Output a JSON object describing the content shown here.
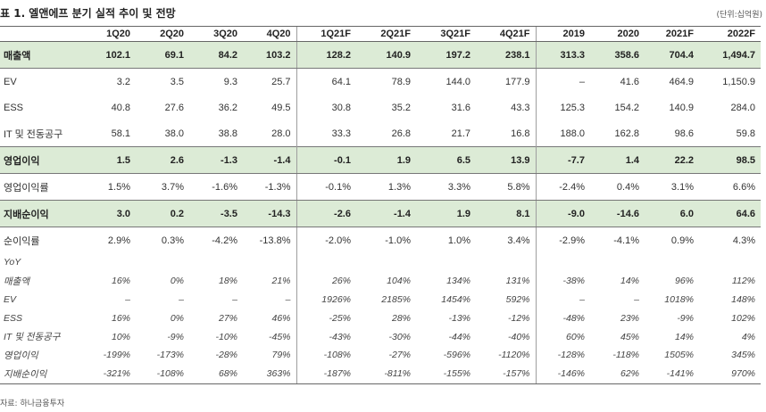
{
  "title": "표 1. 엘앤에프 분기 실적 추이 및 전망",
  "unit": "(단위:십억원)",
  "source": "자료: 하나금융투자",
  "columns": [
    "1Q20",
    "2Q20",
    "3Q20",
    "4Q20",
    "1Q21F",
    "2Q21F",
    "3Q21F",
    "4Q21F",
    "2019",
    "2020",
    "2021F",
    "2022F"
  ],
  "rows": [
    {
      "label": "매출액",
      "values": [
        "102.1",
        "69.1",
        "84.2",
        "103.2",
        "128.2",
        "140.9",
        "197.2",
        "238.1",
        "313.3",
        "358.6",
        "704.4",
        "1,494.7"
      ]
    },
    {
      "label": "EV",
      "values": [
        "3.2",
        "3.5",
        "9.3",
        "25.7",
        "64.1",
        "78.9",
        "144.0",
        "177.9",
        "–",
        "41.6",
        "464.9",
        "1,150.9"
      ]
    },
    {
      "label": "ESS",
      "values": [
        "40.8",
        "27.6",
        "36.2",
        "49.5",
        "30.8",
        "35.2",
        "31.6",
        "43.3",
        "125.3",
        "154.2",
        "140.9",
        "284.0"
      ]
    },
    {
      "label": "IT 및 전동공구",
      "values": [
        "58.1",
        "38.0",
        "38.8",
        "28.0",
        "33.3",
        "26.8",
        "21.7",
        "16.8",
        "188.0",
        "162.8",
        "98.6",
        "59.8"
      ]
    },
    {
      "label": "영업이익",
      "values": [
        "1.5",
        "2.6",
        "-1.3",
        "-1.4",
        "-0.1",
        "1.9",
        "6.5",
        "13.9",
        "-7.7",
        "1.4",
        "22.2",
        "98.5"
      ]
    },
    {
      "label": "영업이익률",
      "values": [
        "1.5%",
        "3.7%",
        "-1.6%",
        "-1.3%",
        "-0.1%",
        "1.3%",
        "3.3%",
        "5.8%",
        "-2.4%",
        "0.4%",
        "3.1%",
        "6.6%"
      ]
    },
    {
      "label": "지배순이익",
      "values": [
        "3.0",
        "0.2",
        "-3.5",
        "-14.3",
        "-2.6",
        "-1.4",
        "1.9",
        "8.1",
        "-9.0",
        "-14.6",
        "6.0",
        "64.6"
      ]
    },
    {
      "label": "순이익률",
      "values": [
        "2.9%",
        "0.3%",
        "-4.2%",
        "-13.8%",
        "-2.0%",
        "-1.0%",
        "1.0%",
        "3.4%",
        "-2.9%",
        "-4.1%",
        "0.9%",
        "4.3%"
      ]
    }
  ],
  "yoy_header": "YoY",
  "yoy_rows": [
    {
      "label": "매출액",
      "values": [
        "16%",
        "0%",
        "18%",
        "21%",
        "26%",
        "104%",
        "134%",
        "131%",
        "-38%",
        "14%",
        "96%",
        "112%"
      ]
    },
    {
      "label": "EV",
      "values": [
        "–",
        "–",
        "–",
        "–",
        "1926%",
        "2185%",
        "1454%",
        "592%",
        "–",
        "–",
        "1018%",
        "148%"
      ]
    },
    {
      "label": "ESS",
      "values": [
        "16%",
        "0%",
        "27%",
        "46%",
        "-25%",
        "28%",
        "-13%",
        "-12%",
        "-48%",
        "23%",
        "-9%",
        "102%"
      ]
    },
    {
      "label": "IT 및 전동공구",
      "values": [
        "10%",
        "-9%",
        "-10%",
        "-45%",
        "-43%",
        "-30%",
        "-44%",
        "-40%",
        "60%",
        "45%",
        "14%",
        "4%"
      ]
    },
    {
      "label": "영업이익",
      "values": [
        "-199%",
        "-173%",
        "-28%",
        "79%",
        "-108%",
        "-27%",
        "-596%",
        "-1120%",
        "-128%",
        "-118%",
        "1505%",
        "345%"
      ]
    },
    {
      "label": "지배순이익",
      "values": [
        "-321%",
        "-108%",
        "68%",
        "363%",
        "-187%",
        "-811%",
        "-155%",
        "-157%",
        "-146%",
        "62%",
        "-141%",
        "970%"
      ]
    }
  ]
}
